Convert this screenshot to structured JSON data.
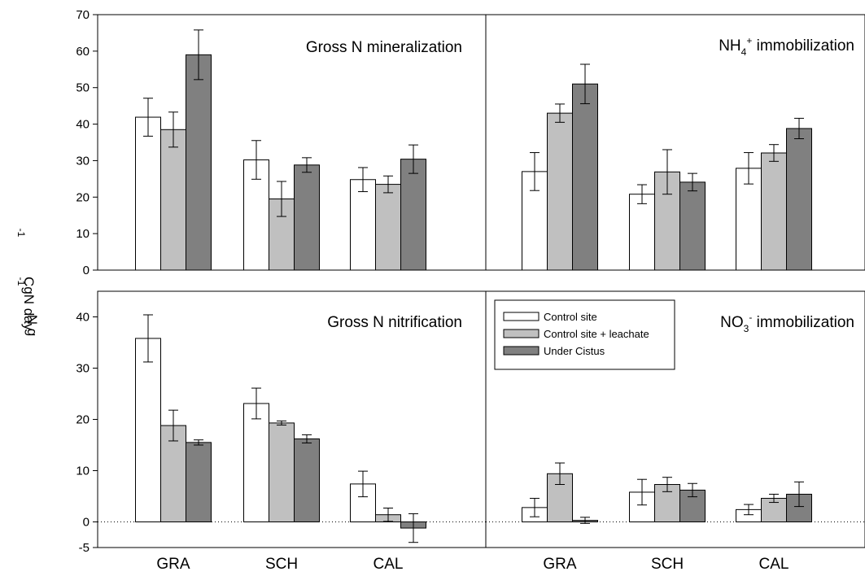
{
  "y_axis_label": {
    "main": "N g",
    "inverted_part": "-1",
    "tail": "gN day",
    "tail_sup": "-1",
    "tail2": "C"
  },
  "legend": [
    {
      "label": "Control site",
      "color": "#ffffff"
    },
    {
      "label": "Control site + leachate",
      "color": "#c0c0c0"
    },
    {
      "label": "Under Cistus",
      "color": "#808080"
    }
  ],
  "chart_data": [
    {
      "type": "bar",
      "title_main": "Gross N mineralization",
      "title_sup": "",
      "title_tail": "",
      "ylim": [
        0,
        70
      ],
      "yticks": [
        0,
        10,
        20,
        30,
        40,
        50,
        60,
        70
      ],
      "categories": [
        "GRA",
        "SCH",
        "CAL"
      ],
      "series": [
        {
          "values": [
            41.9,
            30.2,
            24.8
          ],
          "errors": [
            5.2,
            5.3,
            3.3
          ]
        },
        {
          "values": [
            38.5,
            19.5,
            23.5
          ],
          "errors": [
            4.8,
            4.8,
            2.3
          ]
        },
        {
          "values": [
            59.0,
            28.8,
            30.4
          ],
          "errors": [
            6.8,
            2.0,
            3.9
          ]
        }
      ]
    },
    {
      "type": "bar",
      "title_main": "NH",
      "title_sub": "4",
      "title_sup": "+",
      "title_tail": " immobilization",
      "ylim": [
        0,
        70
      ],
      "yticks": [
        0,
        10,
        20,
        30,
        40,
        50,
        60,
        70
      ],
      "categories": [
        "GRA",
        "SCH",
        "CAL"
      ],
      "series": [
        {
          "values": [
            27.0,
            20.8,
            27.9
          ],
          "errors": [
            5.2,
            2.6,
            4.3
          ]
        },
        {
          "values": [
            43.0,
            26.9,
            32.1
          ],
          "errors": [
            2.5,
            6.1,
            2.3
          ]
        },
        {
          "values": [
            51.0,
            24.1,
            38.8
          ],
          "errors": [
            5.4,
            2.4,
            2.8
          ]
        }
      ]
    },
    {
      "type": "bar",
      "title_main": "Gross N nitrification",
      "title_sup": "",
      "title_tail": "",
      "ylim": [
        -5,
        45
      ],
      "yticks": [
        0,
        10,
        20,
        30,
        40
      ],
      "zero_line": "dotted",
      "categories": [
        "GRA",
        "SCH",
        "CAL"
      ],
      "series": [
        {
          "values": [
            35.8,
            23.1,
            7.4
          ],
          "errors": [
            4.6,
            3.0,
            2.5
          ]
        },
        {
          "values": [
            18.8,
            19.3,
            1.4
          ],
          "errors": [
            3.0,
            0.4,
            1.3
          ]
        },
        {
          "values": [
            15.5,
            16.2,
            -1.2
          ],
          "errors": [
            0.5,
            0.8,
            2.8
          ]
        }
      ]
    },
    {
      "type": "bar",
      "title_main": "NO",
      "title_sub": "3",
      "title_sup": "-",
      "title_tail": " immobilization",
      "ylim": [
        -5,
        45
      ],
      "yticks": [
        0,
        10,
        20,
        30,
        40
      ],
      "zero_line": "dotted",
      "categories": [
        "GRA",
        "SCH",
        "CAL"
      ],
      "series": [
        {
          "values": [
            2.8,
            5.8,
            2.4
          ],
          "errors": [
            1.8,
            2.5,
            1.0
          ]
        },
        {
          "values": [
            9.4,
            7.3,
            4.6
          ],
          "errors": [
            2.1,
            1.4,
            0.8
          ]
        },
        {
          "values": [
            0.3,
            6.2,
            5.4
          ],
          "errors": [
            0.6,
            1.3,
            2.4
          ]
        }
      ]
    }
  ]
}
